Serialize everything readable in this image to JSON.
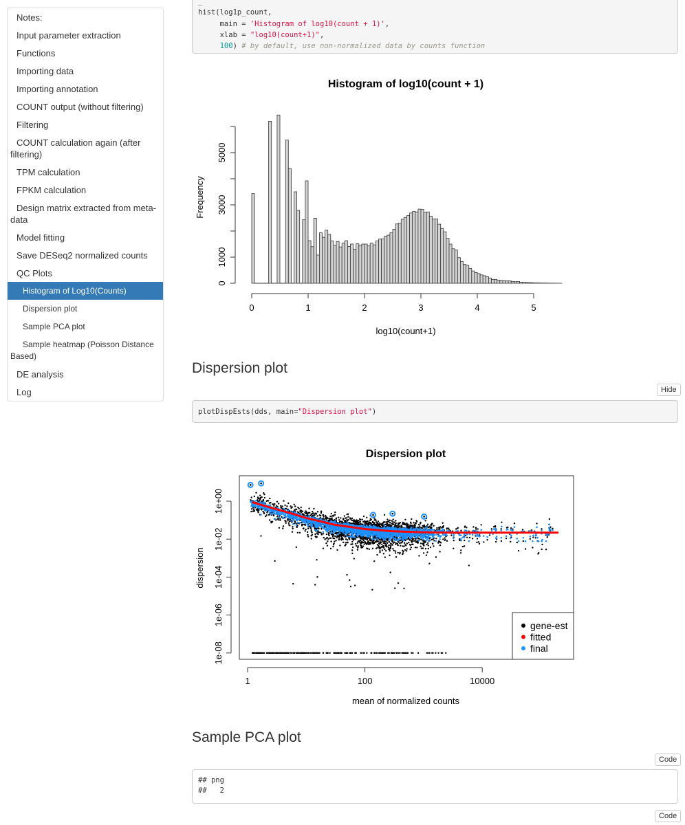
{
  "sidebar": {
    "items": [
      {
        "label": "Notes:",
        "level": 1
      },
      {
        "label": "Input parameter extraction",
        "level": 1
      },
      {
        "label": "Functions",
        "level": 1
      },
      {
        "label": "Importing data",
        "level": 1
      },
      {
        "label": "Importing annotation",
        "level": 1
      },
      {
        "label": "COUNT output (without filtering)",
        "level": 1
      },
      {
        "label": "Filtering",
        "level": 1
      },
      {
        "label": "COUNT calculation again (after filtering)",
        "level": 1
      },
      {
        "label": "TPM calculation",
        "level": 1
      },
      {
        "label": "FPKM calculation",
        "level": 1
      },
      {
        "label": "Design matrix extracted from meta-data",
        "level": 1
      },
      {
        "label": "Model fitting",
        "level": 1
      },
      {
        "label": "Save DESeq2 normalized counts",
        "level": 1
      },
      {
        "label": "QC Plots",
        "level": 1
      },
      {
        "label": "Histogram of Log10(Counts)",
        "level": 2,
        "active": true
      },
      {
        "label": "Dispersion plot",
        "level": 2
      },
      {
        "label": "Sample PCA plot",
        "level": 2
      },
      {
        "label": "Sample heatmap (Poisson Distance Based)",
        "level": 2
      },
      {
        "label": "DE analysis",
        "level": 1
      },
      {
        "label": "Log",
        "level": 1
      }
    ],
    "active_color": "#337ab7"
  },
  "code_hist": {
    "line1": "hist(log1p_count,",
    "line2_pre": "     main = ",
    "line2_str": "'Histogram of log10(count + 1)'",
    "line2_post": ",",
    "line3_pre": "     xlab = ",
    "line3_str": "\"log10(count+1)\"",
    "line3_post": ",",
    "line4_pre": "     ",
    "line4_num": "100",
    "line4_mid": ") ",
    "line4_com": "# by default, use non-normalized data by counts function"
  },
  "dispersion_section": {
    "heading": "Dispersion plot",
    "hide_button": "Hide",
    "code_pre": "plotDispEsts(dds, main=",
    "code_str": "\"Dispersion plot\"",
    "code_post": ")"
  },
  "pca_section": {
    "heading": "Sample PCA plot",
    "code_button": "Code",
    "output_line1": "## png",
    "output_line2": "##   2",
    "code_button_2": "Code"
  },
  "chart_data": [
    {
      "type": "bar",
      "title": "Histogram of log10(count + 1)",
      "xlabel": "log10(count+1)",
      "ylabel": "Frequency",
      "bin_width": 0.05,
      "bin_start": 0,
      "xlim": [
        0,
        5.5
      ],
      "ylim": [
        0,
        6500
      ],
      "x_ticks": [
        "0",
        "1",
        "2",
        "3",
        "4",
        "5"
      ],
      "y_ticks": [
        0,
        1000,
        2000,
        3000,
        4000,
        5000,
        6000
      ],
      "y_tick_labels": [
        "0",
        "1000",
        "",
        "3000",
        "",
        "5000",
        ""
      ],
      "bar_fill": "#d3d3d3",
      "values": [
        3430,
        0,
        0,
        0,
        0,
        0,
        6200,
        0,
        0,
        6440,
        0,
        0,
        5480,
        4390,
        0,
        3500,
        2790,
        0,
        2430,
        3920,
        1630,
        1400,
        2490,
        1080,
        1930,
        1760,
        2030,
        1870,
        1620,
        1440,
        1600,
        1390,
        1540,
        1630,
        1410,
        1500,
        1300,
        1510,
        1460,
        1500,
        1500,
        1430,
        1540,
        1470,
        1620,
        1690,
        1700,
        1800,
        1840,
        1930,
        2070,
        2270,
        2300,
        2450,
        2520,
        2590,
        2690,
        2750,
        2730,
        2840,
        2830,
        2710,
        2730,
        2570,
        2460,
        2460,
        2260,
        2100,
        1970,
        1720,
        1500,
        1320,
        1270,
        980,
        830,
        720,
        690,
        570,
        470,
        410,
        370,
        320,
        290,
        250,
        200,
        150,
        150,
        120,
        110,
        100,
        95,
        95,
        70,
        60,
        70,
        40,
        35,
        30,
        25,
        20,
        15,
        15,
        10,
        10,
        8,
        5,
        5,
        3,
        2,
        1
      ]
    },
    {
      "type": "scatter",
      "title": "Dispersion plot",
      "xlabel": "mean of normalized counts",
      "ylabel": "dispersion",
      "x_scale": "log",
      "y_scale": "log",
      "xlim": [
        0.9,
        250000
      ],
      "ylim": [
        3e-09,
        20
      ],
      "x_ticks": [
        "1",
        "100",
        "10000"
      ],
      "y_ticks": [
        "1e+00",
        "1e-02",
        "1e-04",
        "1e-06",
        "1e-08"
      ],
      "legend": {
        "position": "bottom-right",
        "entries": [
          {
            "label": "gene-est",
            "color": "#000000"
          },
          {
            "label": "fitted",
            "color": "#ff0000"
          },
          {
            "label": "final",
            "color": "#1e90ff"
          }
        ]
      },
      "fitted_trend": {
        "x": [
          1.2,
          2,
          5,
          10,
          30,
          100,
          300,
          1000,
          3000,
          10000,
          30000,
          100000,
          200000
        ],
        "y": [
          0.9,
          0.55,
          0.25,
          0.13,
          0.058,
          0.034,
          0.026,
          0.023,
          0.022,
          0.022,
          0.022,
          0.022,
          0.022
        ]
      },
      "outliers_final": [
        {
          "x": 1.12,
          "y": 7.2
        },
        {
          "x": 1.7,
          "y": 8.7
        },
        {
          "x": 138,
          "y": 0.19
        },
        {
          "x": 296,
          "y": 0.22
        },
        {
          "x": 1020,
          "y": 0.155
        }
      ],
      "zero_dispersion_value": 1e-08,
      "zero_dispersion_xrange": [
        1.2,
        2300
      ]
    }
  ]
}
